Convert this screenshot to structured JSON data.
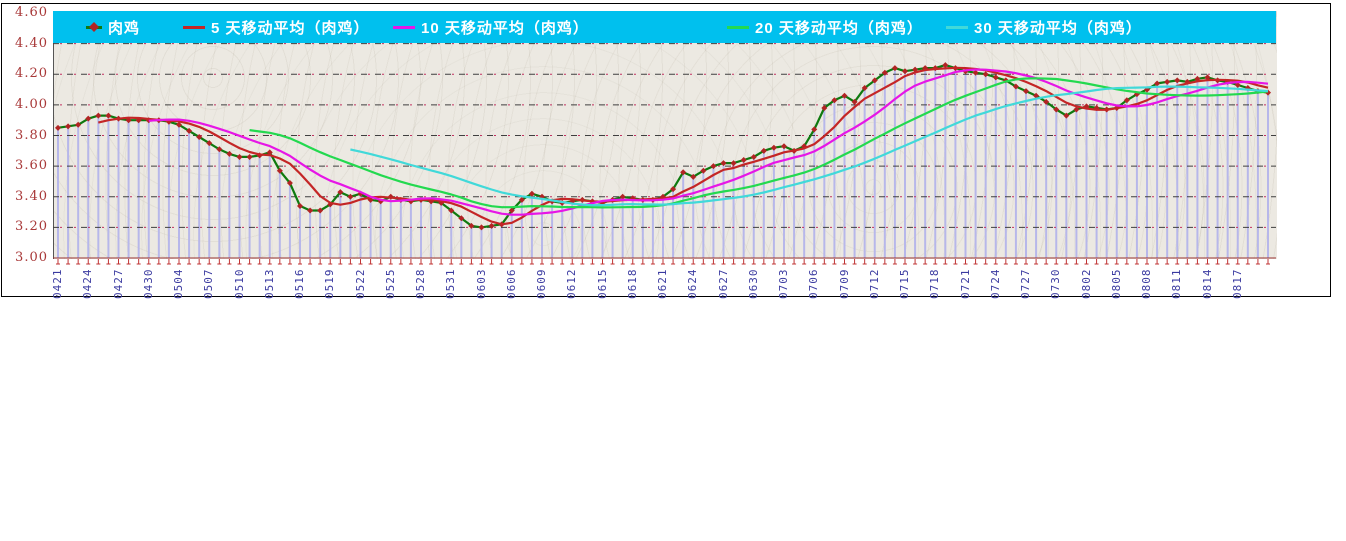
{
  "chart_data": {
    "type": "line",
    "title": "",
    "y_axis": {
      "min": 3.0,
      "max": 4.6,
      "step": 0.2,
      "tick_labels": [
        "4.60",
        "4.40",
        "4.20",
        "4.00",
        "3.80",
        "3.60",
        "3.40",
        "3.20",
        "3.00"
      ],
      "label_color": "#a83838"
    },
    "x_axis": {
      "tick_labels": [
        "0421",
        "0424",
        "0427",
        "0430",
        "0504",
        "0507",
        "0510",
        "0513",
        "0516",
        "0519",
        "0522",
        "0525",
        "0528",
        "0531",
        "0603",
        "0606",
        "0609",
        "0612",
        "0615",
        "0618",
        "0621",
        "0624",
        "0627",
        "0630",
        "0703",
        "0706",
        "0709",
        "0712",
        "0715",
        "0718",
        "0721",
        "0724",
        "0727",
        "0730",
        "0802",
        "0805",
        "0808",
        "0811",
        "0814",
        "0817"
      ],
      "label_every": 3,
      "label_color": "#3a3aa0",
      "tick_color": "#c03333",
      "axis_line_color": "#993333"
    },
    "legend": {
      "background": "#00c0ee",
      "text_color": "#ffffff",
      "position": "top"
    },
    "grid": {
      "horizontal": true,
      "style": "dash-dot",
      "colors": [
        "#3f3f3f",
        "#c23060"
      ]
    },
    "drop_lines": {
      "show": true,
      "color": "#b7b7ea"
    },
    "plot_background": "#ece9e2",
    "series": [
      {
        "name": "肉鸡",
        "kind": "daily-price",
        "color": "#0f7a0f",
        "marker": "diamond",
        "marker_color": "#b22424",
        "values": [
          3.85,
          3.86,
          3.87,
          3.91,
          3.93,
          3.93,
          3.91,
          3.9,
          3.9,
          3.9,
          3.9,
          3.89,
          3.87,
          3.83,
          3.79,
          3.75,
          3.71,
          3.68,
          3.66,
          3.66,
          3.67,
          3.69,
          3.57,
          3.49,
          3.34,
          3.31,
          3.31,
          3.35,
          3.43,
          3.4,
          3.42,
          3.38,
          3.37,
          3.4,
          3.38,
          3.37,
          3.38,
          3.37,
          3.36,
          3.31,
          3.26,
          3.21,
          3.2,
          3.21,
          3.22,
          3.31,
          3.38,
          3.42,
          3.4,
          3.37,
          3.36,
          3.37,
          3.38,
          3.37,
          3.36,
          3.38,
          3.4,
          3.39,
          3.38,
          3.38,
          3.4,
          3.45,
          3.56,
          3.53,
          3.57,
          3.6,
          3.62,
          3.62,
          3.64,
          3.66,
          3.7,
          3.72,
          3.73,
          3.7,
          3.73,
          3.84,
          3.98,
          4.03,
          4.06,
          4.02,
          4.11,
          4.16,
          4.21,
          4.24,
          4.22,
          4.23,
          4.24,
          4.24,
          4.26,
          4.24,
          4.22,
          4.21,
          4.2,
          4.18,
          4.16,
          4.12,
          4.09,
          4.06,
          4.02,
          3.97,
          3.93,
          3.97,
          3.99,
          3.98,
          3.97,
          3.98,
          4.03,
          4.07,
          4.1,
          4.14,
          4.15,
          4.16,
          4.15,
          4.17,
          4.18,
          4.16,
          4.15,
          4.13,
          4.11,
          4.09,
          4.08
        ]
      },
      {
        "name": "5 天移动平均（肉鸡）",
        "derived": "moving_average",
        "window": 5,
        "color": "#c42626"
      },
      {
        "name": "10 天移动平均（肉鸡）",
        "derived": "moving_average",
        "window": 10,
        "color": "#e616e6"
      },
      {
        "name": "20 天移动平均（肉鸡）",
        "derived": "moving_average",
        "window": 20,
        "color": "#23d94f"
      },
      {
        "name": "30 天移动平均（肉鸡）",
        "derived": "moving_average",
        "window": 30,
        "color": "#41d9d9"
      }
    ]
  }
}
